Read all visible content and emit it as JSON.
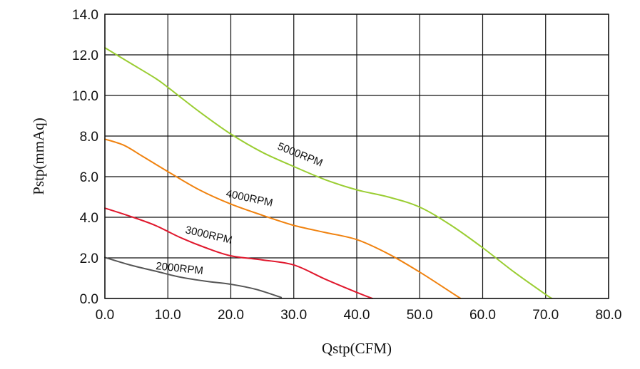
{
  "chart_data": {
    "type": "line",
    "xlabel": "Qstp(CFM)",
    "ylabel": "Pstp(mmAq)",
    "xlim": [
      0,
      80
    ],
    "ylim": [
      0,
      14
    ],
    "xticks": [
      "0.0",
      "10.0",
      "20.0",
      "30.0",
      "40.0",
      "50.0",
      "60.0",
      "70.0",
      "80.0"
    ],
    "yticks": [
      "0.0",
      "2.0",
      "4.0",
      "6.0",
      "8.0",
      "10.0",
      "12.0",
      "14.0"
    ],
    "grid": true,
    "series": [
      {
        "name": "5000RPM",
        "color": "#9acd32",
        "x": [
          0,
          4,
          8,
          10,
          15,
          20,
          25,
          30,
          35,
          40,
          45,
          50,
          55,
          60,
          65,
          70,
          71
        ],
        "y": [
          12.35,
          11.6,
          10.85,
          10.4,
          9.2,
          8.1,
          7.2,
          6.5,
          5.85,
          5.35,
          5.0,
          4.5,
          3.6,
          2.5,
          1.3,
          0.2,
          0
        ]
      },
      {
        "name": "4000RPM",
        "color": "#f0820f",
        "x": [
          0,
          3,
          6,
          10,
          15,
          20,
          25,
          30,
          35,
          40,
          45,
          50,
          55,
          56.5
        ],
        "y": [
          7.85,
          7.55,
          7.0,
          6.25,
          5.35,
          4.65,
          4.1,
          3.6,
          3.25,
          2.9,
          2.2,
          1.3,
          0.3,
          0
        ]
      },
      {
        "name": "3000RPM",
        "color": "#e0182d",
        "x": [
          0,
          4,
          8,
          12,
          16,
          20,
          25,
          30,
          35,
          40,
          42.5
        ],
        "y": [
          4.45,
          4.05,
          3.6,
          3.0,
          2.5,
          2.1,
          1.9,
          1.65,
          0.95,
          0.3,
          0
        ]
      },
      {
        "name": "2000RPM",
        "color": "#555555",
        "x": [
          0,
          4,
          8,
          12,
          16,
          20,
          24,
          28
        ],
        "y": [
          2.02,
          1.65,
          1.35,
          1.05,
          0.85,
          0.7,
          0.45,
          0.05
        ]
      }
    ],
    "annotations": [
      "5000RPM",
      "4000RPM",
      "3000RPM",
      "2000RPM"
    ]
  }
}
